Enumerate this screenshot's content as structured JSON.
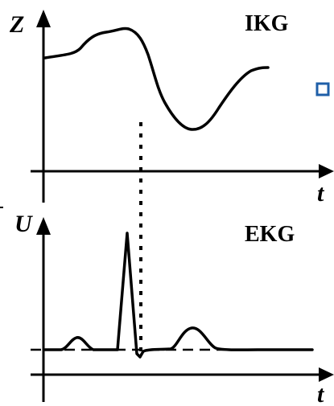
{
  "top_plot": {
    "y_axis_label": "Z",
    "x_axis_label": "t",
    "title": "IKG"
  },
  "bottom_plot": {
    "y_axis_label": "U",
    "x_axis_label": "t",
    "title": "EKG"
  },
  "colors": {
    "line": "#000000",
    "marker_blue": "#1f5fa8"
  }
}
